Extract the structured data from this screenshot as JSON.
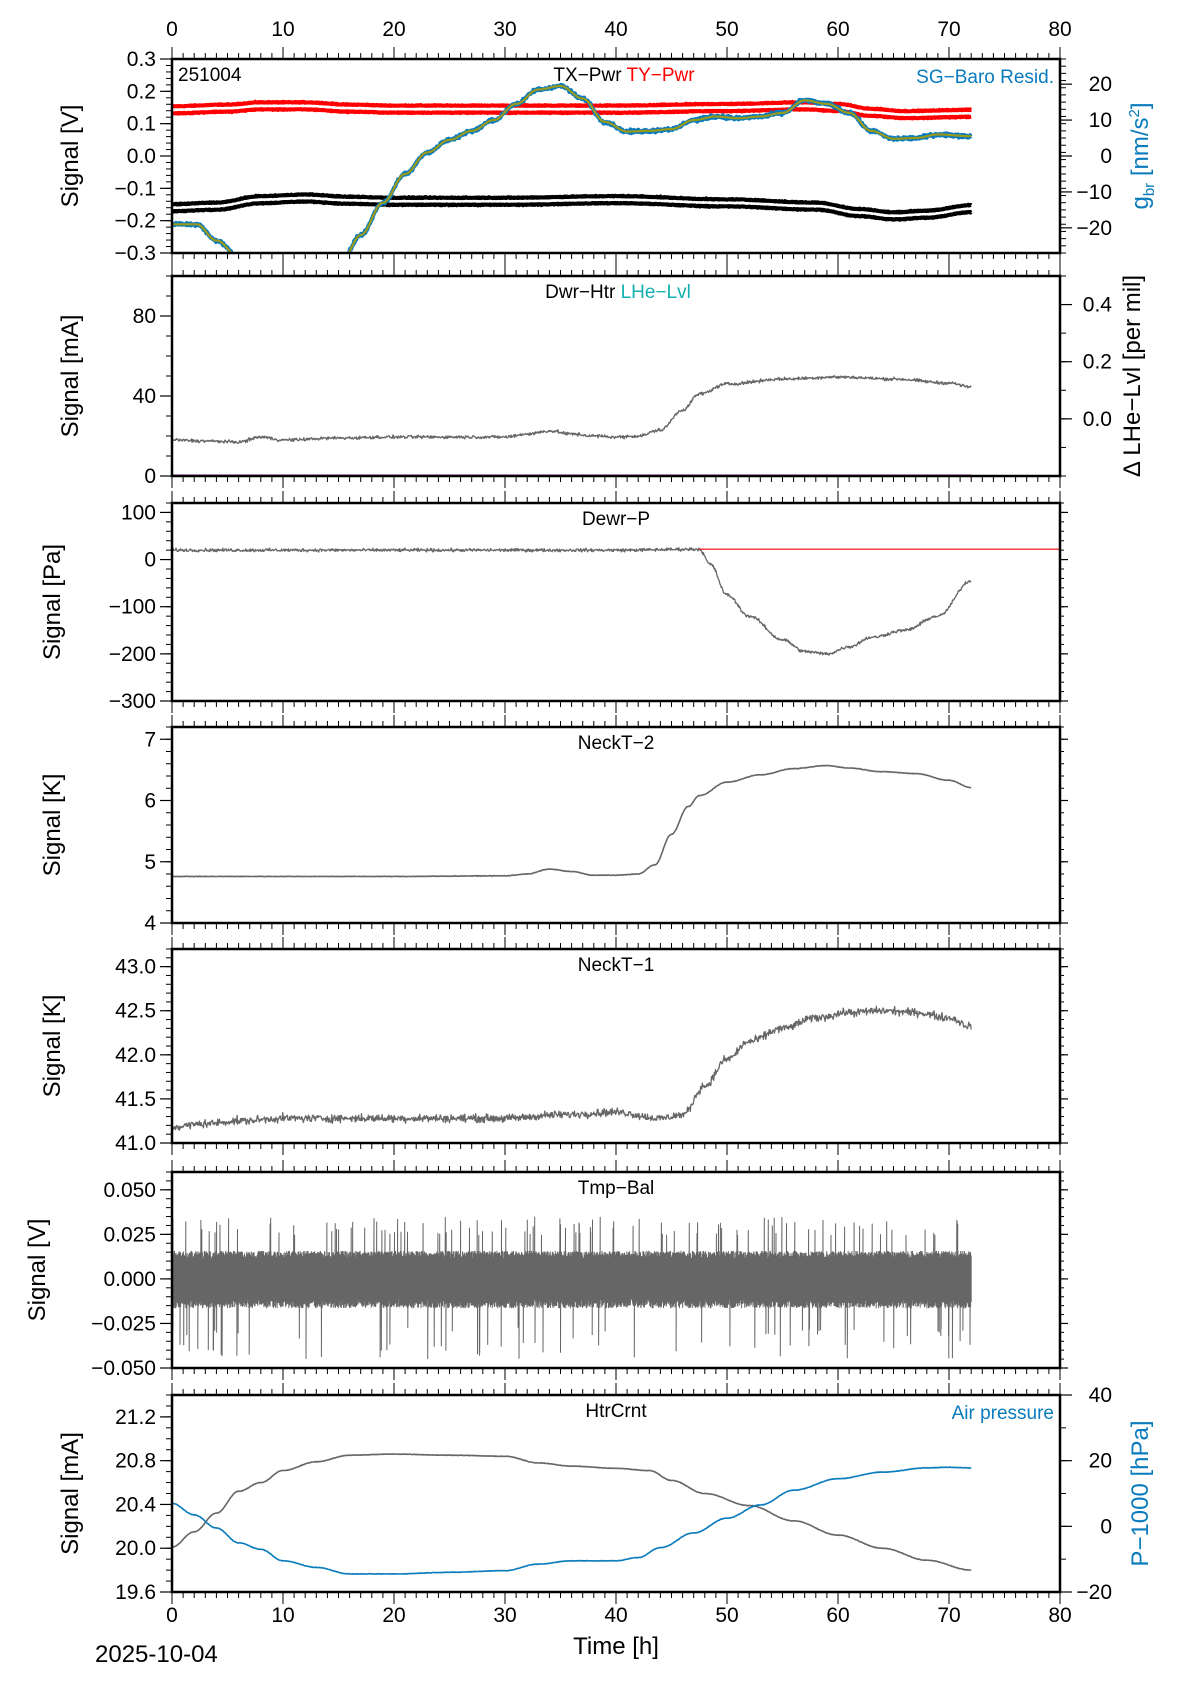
{
  "chart_data": {
    "type": "line",
    "station_code": "251004",
    "date_label": "2025-10-04",
    "xlabel": "Time [h]",
    "xlim": [
      0,
      80
    ],
    "x_ticks": [
      0,
      10,
      20,
      30,
      40,
      50,
      60,
      70,
      80
    ],
    "x_minor_step": 1,
    "x_data_end": 72,
    "colors": {
      "black": "#000000",
      "red": "#ff0000",
      "gray": "#666666",
      "blue": "#0a7bbd",
      "olive": "#9a9a1a",
      "cyan": "#12b0b0",
      "magenta": "#c000c0"
    },
    "panels": [
      {
        "id": "tx-ty-pwr",
        "titles": [
          {
            "text": "TX−Pwr",
            "color": "black"
          },
          {
            "text": "TY−Pwr",
            "color": "red"
          }
        ],
        "right_label": {
          "text": "SG−Baro Resid.",
          "color": "blue"
        },
        "corner_label": "251004",
        "ylabel": "Signal [V]",
        "ylim": [
          -0.3,
          0.3
        ],
        "y_ticks": [
          -0.3,
          -0.2,
          -0.1,
          0.0,
          0.1,
          0.2,
          0.3
        ],
        "y_tick_labels": [
          "−0.3",
          "−0.2",
          "−0.1",
          "0.0",
          "0.1",
          "0.2",
          "0.3"
        ],
        "y2label": "g_br [nm/s^2]",
        "y2label_color": "blue",
        "y2lim": [
          -27,
          27
        ],
        "y2_ticks": [
          -20,
          -10,
          0,
          10,
          20
        ],
        "y2_tick_labels": [
          "−20",
          "−10",
          "0",
          "10",
          "20"
        ],
        "series": [
          {
            "name": "TY-Pwr",
            "color": "red",
            "style": "band",
            "axis": "y",
            "x": [
              0,
              5,
              8,
              12,
              16,
              20,
              30,
              40,
              50,
              57,
              60,
              63,
              66,
              72
            ],
            "y": [
              0.143,
              0.148,
              0.155,
              0.155,
              0.148,
              0.145,
              0.145,
              0.145,
              0.15,
              0.155,
              0.15,
              0.135,
              0.128,
              0.132
            ]
          },
          {
            "name": "TX-Pwr",
            "color": "black",
            "style": "band",
            "axis": "y",
            "x": [
              0,
              4,
              8,
              12,
              16,
              20,
              30,
              40,
              50,
              58,
              62,
              65,
              68,
              72
            ],
            "y": [
              -0.16,
              -0.155,
              -0.135,
              -0.13,
              -0.137,
              -0.14,
              -0.14,
              -0.135,
              -0.145,
              -0.155,
              -0.175,
              -0.185,
              -0.18,
              -0.163
            ]
          },
          {
            "name": "SG-Baro Resid.",
            "color": "blue",
            "style": "noisy",
            "axis": "y2",
            "x": [
              0,
              2.2,
              4,
              6,
              8,
              10,
              12,
              14,
              15.5,
              17,
              19,
              21,
              23,
              25,
              27,
              29,
              31,
              33,
              35,
              37,
              39,
              41,
              43,
              45,
              47,
              49,
              51,
              53,
              55,
              57,
              59,
              61,
              63,
              65,
              67,
              69,
              72
            ],
            "y": [
              -19.0,
              -19.0,
              -23.5,
              -28.0,
              -32,
              -36,
              -38,
              -34,
              -28.0,
              -22.0,
              -13.0,
              -5.0,
              1.0,
              4.5,
              7.0,
              10.0,
              14.5,
              18.5,
              19.5,
              16.0,
              9.5,
              6.8,
              7.0,
              7.5,
              10.0,
              11.0,
              10.5,
              11.0,
              12.0,
              15.5,
              14.5,
              12.0,
              7.0,
              4.8,
              5.0,
              6.0,
              5.5
            ]
          },
          {
            "name": "SG-Baro Resid. (smoothed)",
            "color": "olive",
            "style": "line",
            "axis": "y2",
            "x": [
              0,
              2.2,
              4,
              6,
              8,
              10,
              12,
              14,
              15.5,
              17,
              19,
              21,
              23,
              25,
              27,
              29,
              31,
              33,
              35,
              37,
              39,
              41,
              43,
              45,
              47,
              49,
              51,
              53,
              55,
              57,
              59,
              61,
              63,
              65,
              67,
              69,
              72
            ],
            "y": [
              -19.0,
              -19.0,
              -23.5,
              -28.0,
              -32,
              -36,
              -38,
              -34,
              -28.0,
              -22.0,
              -13.0,
              -5.0,
              1.0,
              4.5,
              7.0,
              10.0,
              14.5,
              18.5,
              19.5,
              16.0,
              9.5,
              6.8,
              7.0,
              7.5,
              10.0,
              11.0,
              10.5,
              11.0,
              12.0,
              15.5,
              14.5,
              12.0,
              7.0,
              4.8,
              5.0,
              6.0,
              5.5
            ]
          }
        ]
      },
      {
        "id": "dwr-htr",
        "titles": [
          {
            "text": "Dwr−Htr",
            "color": "black"
          },
          {
            "text": "LHe−Lvl",
            "color": "cyan"
          }
        ],
        "ylabel": "Signal [mA]",
        "ylim": [
          0,
          100
        ],
        "y_ticks": [
          0,
          40,
          80
        ],
        "y_tick_labels": [
          "0",
          "40",
          "80"
        ],
        "y_minor_step": 10,
        "y2label": "Δ LHe−Lvl [per mil]",
        "y2label_color": "black",
        "y2lim": [
          -0.2,
          0.5
        ],
        "y2_ticks": [
          0.0,
          0.2,
          0.4
        ],
        "y2_tick_labels": [
          "0.0",
          "0.2",
          "0.4"
        ],
        "y2_minor_step": 0.1,
        "series": [
          {
            "name": "Dwr-Htr",
            "color": "gray",
            "style": "noisy",
            "axis": "y",
            "x": [
              0,
              3,
              6,
              8,
              10,
              15,
              20,
              30,
              32,
              34,
              36,
              38,
              40,
              42,
              44,
              46,
              47.5,
              50,
              55,
              60,
              65,
              70,
              72
            ],
            "y": [
              18,
              17.5,
              17,
              19.5,
              18,
              19,
              19.5,
              19.5,
              21,
              22.5,
              21,
              20,
              19.5,
              20,
              23,
              33,
              41,
              46,
              48.5,
              49.5,
              48.5,
              46.5,
              44.5
            ]
          },
          {
            "name": "LHe-Lvl",
            "color": "magenta",
            "style": "line",
            "axis": "y",
            "x": [
              0,
              72
            ],
            "y": [
              0,
              0
            ]
          }
        ]
      },
      {
        "id": "dewr-p",
        "titles": [
          {
            "text": "Dewr−P",
            "color": "black"
          }
        ],
        "ylabel": "Signal [Pa]",
        "ylim": [
          -300,
          120
        ],
        "y_ticks": [
          -300,
          -200,
          -100,
          0,
          100
        ],
        "y_tick_labels": [
          "−300",
          "−200",
          "−100",
          "0",
          "100"
        ],
        "y_minor_step": 20,
        "series": [
          {
            "name": "Dewr-P",
            "color": "gray",
            "style": "noisy",
            "axis": "y",
            "x": [
              0,
              10,
              20,
              30,
              40,
              47.5,
              48.5,
              50,
              52,
              55,
              57,
              59,
              61,
              63,
              66,
              69,
              72
            ],
            "y": [
              20,
              20,
              20,
              20,
              20,
              22,
              -10,
              -75,
              -120,
              -170,
              -195,
              -200,
              -185,
              -165,
              -150,
              -120,
              -45
            ]
          },
          {
            "name": "Reference",
            "color": "red",
            "style": "line",
            "axis": "y",
            "x": [
              47.5,
              80
            ],
            "y": [
              22,
              22
            ]
          }
        ]
      },
      {
        "id": "neckt-2",
        "titles": [
          {
            "text": "NeckT−2",
            "color": "black"
          }
        ],
        "ylabel": "Signal [K]",
        "ylim": [
          4,
          7.2
        ],
        "y_ticks": [
          4,
          5,
          6,
          7
        ],
        "y_tick_labels": [
          "4",
          "5",
          "6",
          "7"
        ],
        "y_minor_step": 0.2,
        "series": [
          {
            "name": "NeckT-2",
            "color": "gray",
            "style": "line",
            "axis": "y",
            "x": [
              0,
              10,
              20,
              30,
              32,
              34,
              36,
              38,
              40,
              42,
              43.5,
              45,
              46.5,
              47.5,
              50,
              53,
              56,
              59,
              61,
              64,
              67,
              70,
              72
            ],
            "y": [
              4.76,
              4.76,
              4.76,
              4.77,
              4.8,
              4.88,
              4.84,
              4.78,
              4.78,
              4.8,
              4.95,
              5.45,
              5.9,
              6.08,
              6.3,
              6.42,
              6.52,
              6.57,
              6.53,
              6.47,
              6.44,
              6.33,
              6.21
            ]
          }
        ]
      },
      {
        "id": "neckt-1",
        "titles": [
          {
            "text": "NeckT−1",
            "color": "black"
          }
        ],
        "ylabel": "Signal [K]",
        "ylim": [
          41.0,
          43.2
        ],
        "y_ticks": [
          41.0,
          41.5,
          42.0,
          42.5,
          43.0
        ],
        "y_tick_labels": [
          "41.0",
          "41.5",
          "42.0",
          "42.5",
          "43.0"
        ],
        "y_minor_step": 0.1,
        "series": [
          {
            "name": "NeckT-1",
            "color": "gray",
            "style": "noisy",
            "axis": "y",
            "x": [
              0,
              3,
              6,
              10,
              20,
              30,
              35,
              40,
              44,
              46,
              48,
              50,
              52,
              55,
              58,
              61,
              64,
              67,
              70,
              72
            ],
            "y": [
              41.18,
              41.22,
              41.25,
              41.28,
              41.28,
              41.28,
              41.32,
              41.35,
              41.28,
              41.32,
              41.65,
              41.95,
              42.15,
              42.3,
              42.42,
              42.48,
              42.5,
              42.48,
              42.42,
              42.32
            ]
          }
        ]
      },
      {
        "id": "tmp-bal",
        "titles": [
          {
            "text": "Tmp−Bal",
            "color": "black"
          }
        ],
        "ylabel": "Signal [V]",
        "ylim": [
          -0.05,
          0.06
        ],
        "y_ticks": [
          -0.05,
          -0.025,
          0.0,
          0.025,
          0.05
        ],
        "y_tick_labels": [
          "−0.050",
          "−0.025",
          "0.000",
          "0.025",
          "0.050"
        ],
        "y_minor_step": 0.005,
        "series": [
          {
            "name": "Tmp-Bal",
            "color": "gray",
            "style": "noise-band",
            "axis": "y",
            "x": [
              0,
              72
            ],
            "y": [
              0.0,
              0.0
            ],
            "band_halfwidth": 0.015,
            "spike_max": 0.035,
            "spike_min": -0.045
          }
        ]
      },
      {
        "id": "htrcrnt",
        "titles": [
          {
            "text": "HtrCrnt",
            "color": "black"
          }
        ],
        "right_label": {
          "text": "Air pressure",
          "color": "blue"
        },
        "ylabel": "Signal [mA]",
        "ylim": [
          19.6,
          21.4
        ],
        "y_ticks": [
          19.6,
          20.0,
          20.4,
          20.8,
          21.2
        ],
        "y_tick_labels": [
          "19.6",
          "20.0",
          "20.4",
          "20.8",
          "21.2"
        ],
        "y_minor_step": 0.1,
        "y2label": "P−1000 [hPa]",
        "y2label_color": "blue",
        "y2lim": [
          -20,
          40
        ],
        "y2_ticks": [
          -20,
          0,
          20,
          40
        ],
        "y2_tick_labels": [
          "−20",
          "0",
          "20",
          "40"
        ],
        "y2_minor_step": 10,
        "series": [
          {
            "name": "HtrCrnt",
            "color": "gray",
            "style": "line",
            "axis": "y",
            "x": [
              0,
              2,
              4,
              6,
              8,
              10,
              13,
              16,
              20,
              25,
              30,
              33,
              36,
              40,
              43,
              45,
              48,
              52,
              56,
              60,
              64,
              68,
              72
            ],
            "y": [
              20.01,
              20.15,
              20.32,
              20.52,
              20.6,
              20.71,
              20.79,
              20.85,
              20.86,
              20.85,
              20.84,
              20.78,
              20.75,
              20.73,
              20.71,
              20.62,
              20.5,
              20.39,
              20.25,
              20.12,
              20.0,
              19.89,
              19.8
            ]
          },
          {
            "name": "Air pressure",
            "color": "blue",
            "style": "line",
            "axis": "y2",
            "x": [
              0,
              2,
              4,
              6,
              8,
              10,
              13,
              16,
              20,
              25,
              30,
              33,
              36,
              40,
              42,
              44,
              47,
              50,
              53,
              56,
              60,
              64,
              68,
              70,
              72
            ],
            "y": [
              7,
              3.5,
              -0.5,
              -5,
              -7,
              -10.5,
              -12.5,
              -14.5,
              -14.5,
              -14,
              -13.5,
              -11.5,
              -10.5,
              -10.5,
              -9.5,
              -6.5,
              -2,
              2.5,
              6.5,
              11,
              14.5,
              16.5,
              17.8,
              18,
              17.8
            ]
          }
        ]
      }
    ]
  }
}
